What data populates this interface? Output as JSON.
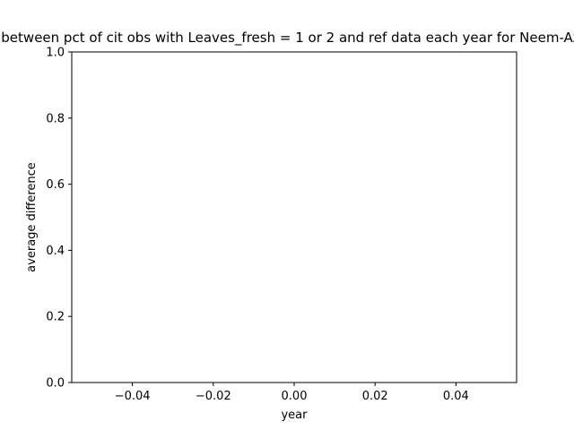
{
  "chart_data": {
    "type": "line",
    "title": "Avg difference between pct of cit obs with Leaves_fresh = 1 or 2 and ref data each year for Neem-Azadirachta indica",
    "xlabel": "year",
    "ylabel": "average difference",
    "xlim": [
      -0.055,
      0.055
    ],
    "ylim": [
      0.0,
      1.0
    ],
    "x_ticks": [
      -0.04,
      -0.02,
      0.0,
      0.02,
      0.04
    ],
    "x_tick_labels": [
      "−0.04",
      "−0.02",
      "0.00",
      "0.02",
      "0.04"
    ],
    "y_ticks": [
      0.0,
      0.2,
      0.4,
      0.6,
      0.8,
      1.0
    ],
    "y_tick_labels": [
      "0.0",
      "0.2",
      "0.4",
      "0.6",
      "0.8",
      "1.0"
    ],
    "grid": false,
    "series": [
      {
        "x": [],
        "values": []
      }
    ],
    "colors": {
      "frame": "#000000",
      "background": "#ffffff",
      "line": "#1f77b4"
    }
  }
}
